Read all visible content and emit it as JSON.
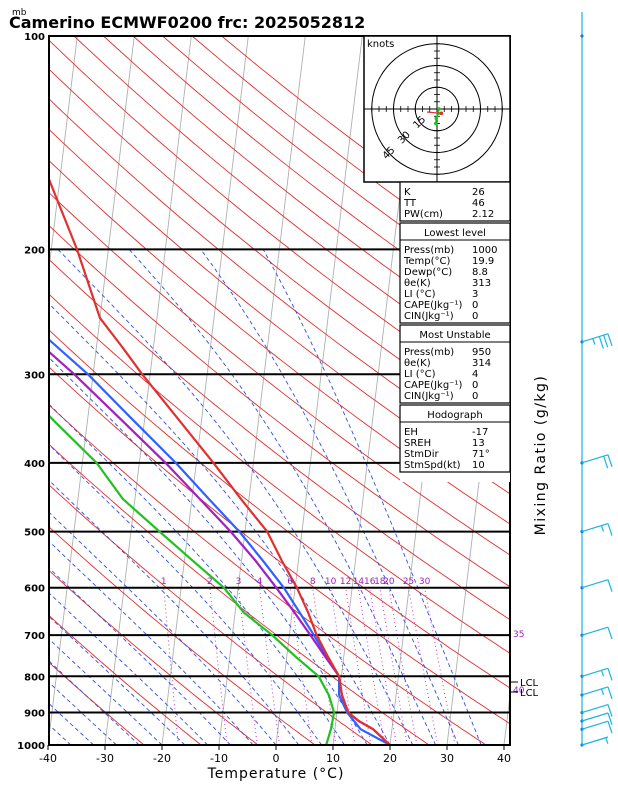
{
  "header": {
    "unit_mb": "mb",
    "title": "Camerino ECMWF0200  frc: 2025052812"
  },
  "chart_data": {
    "type": "line",
    "x_axis": {
      "label": "Temperature (°C)",
      "ticks": [
        -40,
        -30,
        -20,
        -10,
        0,
        10,
        20,
        30,
        40
      ],
      "range": [
        -40,
        40
      ]
    },
    "y_axis": {
      "unit": "mb",
      "scale": "log-pressure",
      "ticks": [
        100,
        200,
        300,
        400,
        500,
        600,
        700,
        800,
        900,
        1000
      ],
      "range": [
        1000,
        100
      ]
    },
    "right_label": "Mixing Ratio (g/kg)",
    "mixing_ratio_labels": [
      "1",
      "2",
      "3",
      "4",
      "6",
      "8",
      "10",
      "12",
      "14",
      "16",
      "18",
      "20",
      "25",
      "30"
    ],
    "wetbulb_labels": [
      "35",
      "40"
    ],
    "lcl_labels": [
      "LCL",
      "LCL"
    ],
    "series": [
      {
        "color": "#e03030",
        "points": [
          [
            1000,
            20
          ],
          [
            950,
            16.7
          ],
          [
            925,
            14
          ],
          [
            900,
            12
          ],
          [
            850,
            10.5
          ],
          [
            800,
            9.6
          ],
          [
            750,
            7.2
          ],
          [
            700,
            4.8
          ],
          [
            650,
            2.8
          ],
          [
            600,
            0.3
          ],
          [
            550,
            -2.9
          ],
          [
            500,
            -6.1
          ],
          [
            450,
            -11.4
          ],
          [
            400,
            -17
          ],
          [
            350,
            -23.7
          ],
          [
            300,
            -31.4
          ],
          [
            275,
            -35.4
          ],
          [
            250,
            -40
          ],
          [
            200,
            -45.5
          ],
          [
            150,
            -53.6
          ],
          [
            100,
            -62.3
          ]
        ]
      },
      {
        "color": "#20c020",
        "points": [
          [
            1000,
            8.8
          ],
          [
            950,
            9.3
          ],
          [
            900,
            9.5
          ],
          [
            850,
            8.2
          ],
          [
            800,
            6
          ],
          [
            750,
            1.5
          ],
          [
            700,
            -3
          ],
          [
            650,
            -8.5
          ],
          [
            600,
            -12.5
          ],
          [
            550,
            -18.5
          ],
          [
            500,
            -25
          ],
          [
            450,
            -32.1
          ],
          [
            400,
            -37.5
          ],
          [
            350,
            -45.7
          ],
          [
            300,
            -54.9
          ],
          [
            250,
            -63.6
          ],
          [
            200,
            -74.7
          ],
          [
            150,
            -87.2
          ],
          [
            100,
            -100.7
          ]
        ]
      },
      {
        "color": "#3060ff",
        "points": [
          [
            1000,
            20
          ],
          [
            950,
            14.5
          ],
          [
            900,
            11.8
          ],
          [
            850,
            10
          ],
          [
            800,
            9.6
          ],
          [
            750,
            7
          ],
          [
            700,
            4.3
          ],
          [
            650,
            1.3
          ],
          [
            600,
            -2
          ],
          [
            550,
            -6.2
          ],
          [
            500,
            -11
          ],
          [
            450,
            -17
          ],
          [
            400,
            -23.6
          ],
          [
            350,
            -31.7
          ],
          [
            300,
            -40.9
          ],
          [
            250,
            -53.2
          ],
          [
            200,
            -67.9
          ],
          [
            150,
            -86.3
          ],
          [
            100,
            -109.3
          ]
        ]
      },
      {
        "color": "#a020c0",
        "points": [
          [
            1000,
            20
          ],
          [
            950,
            16.7
          ],
          [
            925,
            14
          ],
          [
            900,
            12
          ],
          [
            850,
            10.5
          ],
          [
            800,
            9.6
          ],
          [
            750,
            6.7
          ],
          [
            700,
            3.7
          ],
          [
            650,
            0.4
          ],
          [
            600,
            -3.3
          ],
          [
            550,
            -7.5
          ],
          [
            500,
            -12.5
          ],
          [
            450,
            -18.6
          ],
          [
            400,
            -25.4
          ],
          [
            350,
            -33.7
          ],
          [
            300,
            -43.3
          ],
          [
            250,
            -55.6
          ],
          [
            200,
            -70.4
          ],
          [
            150,
            -89.1
          ],
          [
            100,
            -112.4
          ]
        ]
      }
    ],
    "hodograph": {
      "unit": "knots",
      "ring_labels": [
        "15",
        "30",
        "45"
      ],
      "points": [
        [
          1.3,
          0
        ],
        [
          0.7,
          -3
        ],
        [
          -0.5,
          -6.5
        ],
        [
          -0.8,
          -10
        ]
      ],
      "storm_motion": [
        3,
        -3
      ]
    },
    "wind_barbs": [
      {
        "p": 100,
        "speed": 0
      },
      {
        "p": 270,
        "speed": 35
      },
      {
        "p": 400,
        "speed": 20
      },
      {
        "p": 500,
        "speed": 15
      },
      {
        "p": 600,
        "speed": 10
      },
      {
        "p": 700,
        "speed": 10
      },
      {
        "p": 800,
        "speed": 15
      },
      {
        "p": 850,
        "speed": 15
      },
      {
        "p": 900,
        "speed": 10
      },
      {
        "p": 925,
        "speed": 10
      },
      {
        "p": 950,
        "speed": 10
      },
      {
        "p": 1000,
        "speed": 5
      }
    ]
  },
  "indices": {
    "top": [
      {
        "label": "K",
        "value": "26"
      },
      {
        "label": "TT",
        "value": "46"
      },
      {
        "label": "PW(cm)",
        "value": "2.12"
      }
    ],
    "lowest": {
      "title": "Lowest level",
      "rows": [
        {
          "label": "Press(mb)",
          "value": "1000"
        },
        {
          "label": "Temp(°C)",
          "value": "19.9"
        },
        {
          "label": "Dewp(°C)",
          "value": "8.8"
        },
        {
          "label": "θe(K)",
          "value": "313"
        },
        {
          "label": "LI (°C)",
          "value": "3"
        },
        {
          "label": "CAPE(Jkg⁻¹)",
          "value": "0"
        },
        {
          "label": "CIN(Jkg⁻¹)",
          "value": "0"
        }
      ]
    },
    "unstable": {
      "title": "Most Unstable",
      "rows": [
        {
          "label": "Press(mb)",
          "value": "950"
        },
        {
          "label": "θe(K)",
          "value": "314"
        },
        {
          "label": "LI (°C)",
          "value": "4"
        },
        {
          "label": "CAPE(Jkg⁻¹)",
          "value": "0"
        },
        {
          "label": "CIN(Jkg⁻¹)",
          "value": "0"
        }
      ]
    },
    "hodo": {
      "title": "Hodograph",
      "rows": [
        {
          "label": "EH",
          "value": "-17"
        },
        {
          "label": "SREH",
          "value": "13"
        },
        {
          "label": "StmDir",
          "value": "71°"
        },
        {
          "label": "StmSpd(kt)",
          "value": "10"
        }
      ]
    }
  }
}
